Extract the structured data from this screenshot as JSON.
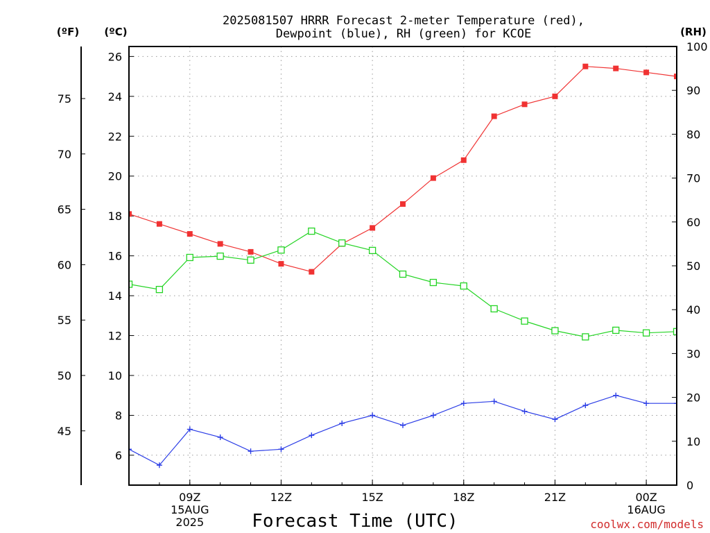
{
  "chart_data": {
    "type": "line",
    "title_lines": [
      "2025081507 HRRR Forecast 2-meter Temperature (red),",
      "Dewpoint (blue), RH (green) for KCOE"
    ],
    "xlabel": "Forecast Time (UTC)",
    "credit": "coolwx.com/models",
    "unit_labels": {
      "fahrenheit": "(ºF)",
      "celsius": "(ºC)",
      "rh": "(RH)"
    },
    "x_hours": [
      7,
      8,
      9,
      10,
      11,
      12,
      13,
      14,
      15,
      16,
      17,
      18,
      19,
      20,
      21,
      22,
      23,
      24,
      25
    ],
    "x_ticks": [
      {
        "hour": 9,
        "lines": [
          "09Z",
          "15AUG",
          "2025"
        ]
      },
      {
        "hour": 12,
        "lines": [
          "12Z"
        ]
      },
      {
        "hour": 15,
        "lines": [
          "15Z"
        ]
      },
      {
        "hour": 18,
        "lines": [
          "18Z"
        ]
      },
      {
        "hour": 21,
        "lines": [
          "21Z"
        ]
      },
      {
        "hour": 24,
        "lines": [
          "00Z",
          "16AUG"
        ]
      }
    ],
    "xlim": [
      7,
      25
    ],
    "ylim_celsius": [
      4.5,
      26.5
    ],
    "ylim_rh": [
      0,
      100
    ],
    "celsius_ticks": [
      6,
      8,
      10,
      12,
      14,
      16,
      18,
      20,
      22,
      24,
      26
    ],
    "fahrenheit_ticks": [
      45,
      50,
      55,
      60,
      65,
      70,
      75
    ],
    "rh_ticks": [
      0,
      10,
      20,
      30,
      40,
      50,
      60,
      70,
      80,
      90,
      100
    ],
    "grid": true,
    "series": [
      {
        "name": "Temperature",
        "axis": "celsius",
        "color": "#f03232",
        "marker": "filled-square",
        "values": [
          18.1,
          17.6,
          17.1,
          16.6,
          16.2,
          15.6,
          15.2,
          16.6,
          17.4,
          18.6,
          19.9,
          20.8,
          23.0,
          23.6,
          24.0,
          25.5,
          25.4,
          25.2,
          25.0
        ]
      },
      {
        "name": "Dewpoint",
        "axis": "celsius",
        "color": "#2a3ce6",
        "marker": "plus",
        "values": [
          6.3,
          5.5,
          7.3,
          6.9,
          6.2,
          6.3,
          7.0,
          7.6,
          8.0,
          7.5,
          8.0,
          8.6,
          8.7,
          8.2,
          7.8,
          8.5,
          9.0,
          8.6,
          8.6
        ]
      },
      {
        "name": "Relative Humidity",
        "axis": "rh",
        "color": "#24d424",
        "marker": "open-square",
        "values": [
          45.8,
          44.6,
          51.9,
          52.2,
          51.3,
          53.6,
          57.9,
          55.2,
          53.5,
          48.1,
          46.2,
          45.4,
          40.2,
          37.4,
          35.2,
          33.8,
          35.3,
          34.7,
          35.0
        ]
      }
    ]
  }
}
